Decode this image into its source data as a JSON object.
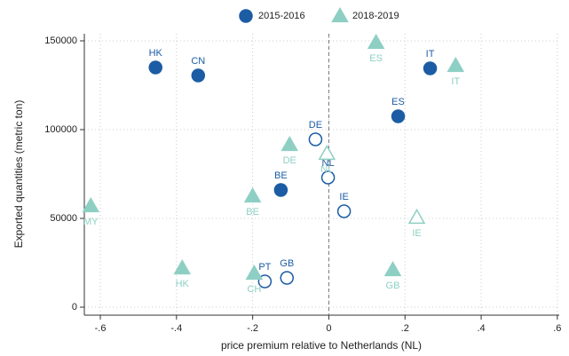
{
  "chart_data": {
    "type": "scatter",
    "xlabel": "price premium relative to Netherlands (NL)",
    "ylabel": "Exported quantities (metric ton)",
    "xlim": [
      -0.642,
      0.605
    ],
    "ylim": [
      -4500,
      154000
    ],
    "xticks": [
      {
        "value": -0.6,
        "label": "-.6"
      },
      {
        "value": -0.4,
        "label": "-.4"
      },
      {
        "value": -0.2,
        "label": "-.2"
      },
      0,
      {
        "value": 0.2,
        "label": ".2"
      },
      {
        "value": 0.4,
        "label": ".4"
      },
      {
        "value": 0.6,
        "label": ".6"
      }
    ],
    "yticks": [
      0,
      50000,
      100000,
      150000
    ],
    "grid": true,
    "reference_line_x": 0,
    "legend": "top",
    "series": [
      {
        "name": "2015-2016",
        "color": "#1c5ca4",
        "marker": "circle",
        "labels": [
          "HK",
          "CN",
          "BE",
          "ES",
          "IT",
          "DE",
          "NL",
          "IE",
          "GB",
          "PT"
        ],
        "x": [
          -0.455,
          -0.343,
          -0.126,
          0.182,
          0.266,
          -0.035,
          -0.002,
          0.04,
          -0.11,
          -0.168
        ],
        "values": [
          135000,
          130500,
          66000,
          107500,
          134500,
          94500,
          73000,
          54000,
          16500,
          14500
        ],
        "filled": [
          true,
          true,
          true,
          true,
          true,
          false,
          false,
          false,
          false,
          false
        ]
      },
      {
        "name": "2018-2019",
        "color": "#8ecfc4",
        "marker": "triangle",
        "labels": [
          "ES",
          "IT",
          "DE",
          "BE",
          "MY",
          "HK",
          "CH",
          "GB",
          "NL",
          "IE"
        ],
        "x": [
          0.124,
          0.333,
          -0.103,
          -0.2,
          -0.625,
          -0.385,
          -0.196,
          0.168,
          -0.005,
          0.231
        ],
        "values": [
          149000,
          136000,
          91500,
          62500,
          57000,
          22000,
          19000,
          21000,
          86500,
          50500
        ],
        "filled": [
          true,
          true,
          true,
          true,
          true,
          true,
          true,
          true,
          false,
          false
        ]
      }
    ]
  }
}
